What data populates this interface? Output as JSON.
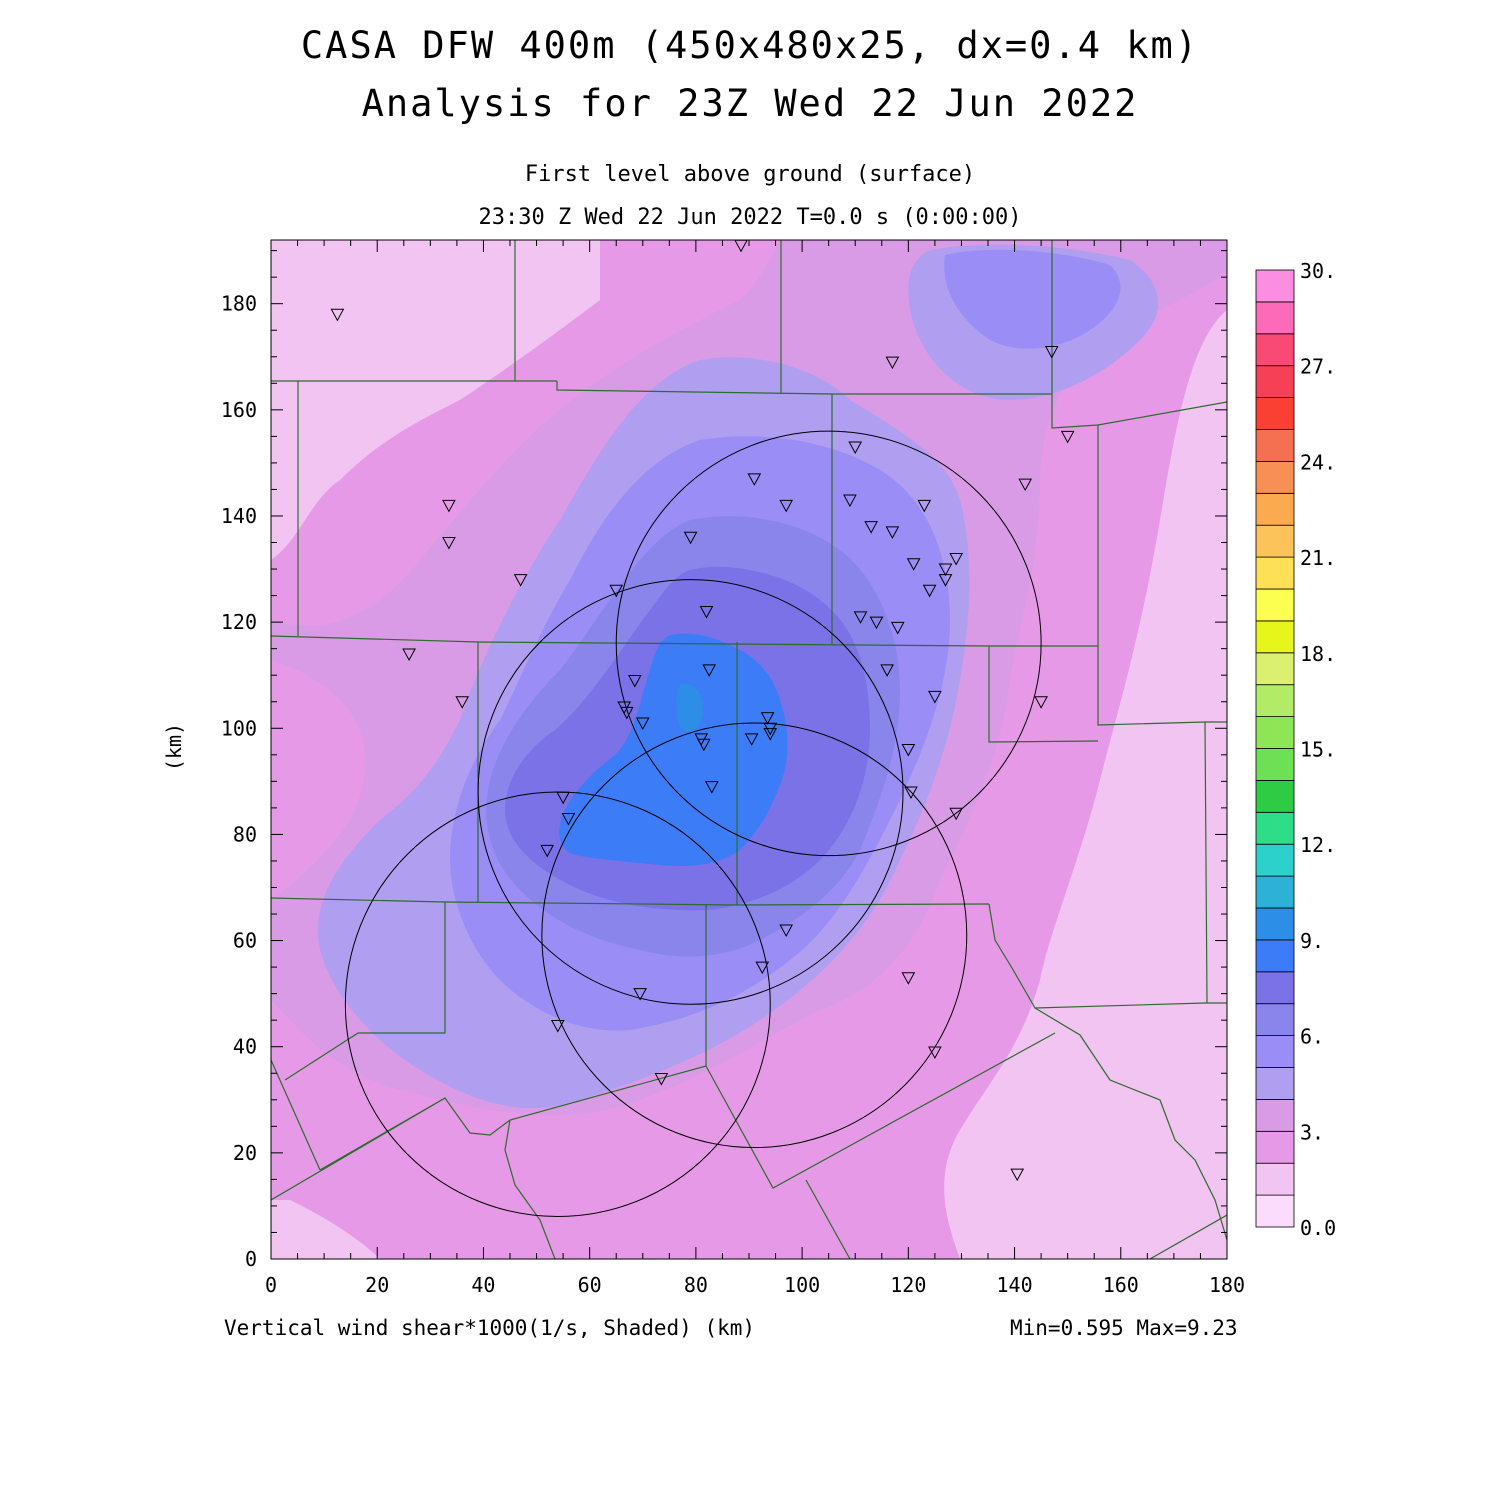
{
  "title": {
    "line1": "CASA DFW 400m (450x480x25, dx=0.4 km)",
    "line2": "Analysis for 23Z Wed 22 Jun 2022"
  },
  "subtitle": {
    "line1": "First level above ground (surface)",
    "line2": "23:30 Z Wed 22 Jun 2022   T=0.0 s (0:00:00)"
  },
  "axes": {
    "x_label": "(km)",
    "y_label": "(km)",
    "x_ticks": [
      "0",
      "20",
      "40",
      "60",
      "80",
      "100",
      "120",
      "140",
      "160",
      "180"
    ],
    "y_ticks": [
      "0",
      "20",
      "40",
      "60",
      "80",
      "100",
      "120",
      "140",
      "160",
      "180"
    ],
    "x_range": [
      0,
      180
    ],
    "y_range": [
      0,
      192
    ]
  },
  "footer": {
    "variable": "Vertical wind shear*1000(1/s, Shaded)",
    "unit": "(km)",
    "stats": "Min=0.595 Max=9.23"
  },
  "colorbar": {
    "labels": [
      "0.0",
      "3.",
      "6.",
      "9.",
      "12.",
      "15.",
      "18.",
      "21.",
      "24.",
      "27.",
      "30."
    ],
    "colors": [
      "#fcdcfc",
      "#f1c4f1",
      "#e699e6",
      "#d99be6",
      "#b09ef0",
      "#9a8df5",
      "#8a85ea",
      "#7a72e6",
      "#3d7cf7",
      "#2c8ee6",
      "#2db1d6",
      "#2dd1cc",
      "#2edd88",
      "#2ecc44",
      "#6ee055",
      "#8ee555",
      "#b2ec66",
      "#dbf06e",
      "#e6f51a",
      "#fcff50",
      "#fde055",
      "#fcc35a",
      "#fbaa50",
      "#f89055",
      "#f47050",
      "#fa4033",
      "#f54055",
      "#f84a74",
      "#fc6ab8",
      "#fb8ee0"
    ]
  },
  "range_rings": [
    {
      "center_km": [
        79,
        88
      ],
      "radius_km": 40
    },
    {
      "center_km": [
        105,
        116
      ],
      "radius_km": 40
    },
    {
      "center_km": [
        91,
        61
      ],
      "radius_km": 40
    },
    {
      "center_km": [
        54,
        48
      ],
      "radius_km": 40
    }
  ],
  "stations_km": [
    [
      12.5,
      178
    ],
    [
      88.5,
      191
    ],
    [
      117,
      169
    ],
    [
      147,
      171
    ],
    [
      150,
      155
    ],
    [
      142,
      146
    ],
    [
      110,
      153
    ],
    [
      91,
      147
    ],
    [
      97,
      142
    ],
    [
      109,
      143
    ],
    [
      123,
      142
    ],
    [
      113,
      138
    ],
    [
      117,
      137
    ],
    [
      79,
      136
    ],
    [
      121,
      131
    ],
    [
      127,
      130
    ],
    [
      129,
      132
    ],
    [
      127,
      128
    ],
    [
      124,
      126
    ],
    [
      65,
      126
    ],
    [
      82,
      122
    ],
    [
      111,
      121
    ],
    [
      114,
      120
    ],
    [
      118,
      119
    ],
    [
      47,
      128
    ],
    [
      33.5,
      142
    ],
    [
      33.5,
      135
    ],
    [
      26,
      114
    ],
    [
      36,
      105
    ],
    [
      82.5,
      111
    ],
    [
      68.5,
      109
    ],
    [
      116,
      111
    ],
    [
      125,
      106
    ],
    [
      145,
      105
    ],
    [
      66.5,
      104
    ],
    [
      67,
      103
    ],
    [
      70,
      101
    ],
    [
      93.5,
      102
    ],
    [
      94,
      100
    ],
    [
      94,
      99
    ],
    [
      90.5,
      98
    ],
    [
      81,
      98
    ],
    [
      81.5,
      97
    ],
    [
      120,
      96
    ],
    [
      83,
      89
    ],
    [
      120.5,
      88
    ],
    [
      129,
      84
    ],
    [
      55,
      87
    ],
    [
      56,
      83
    ],
    [
      52,
      77
    ],
    [
      97,
      62
    ],
    [
      92.5,
      55
    ],
    [
      120,
      53
    ],
    [
      69.5,
      50
    ],
    [
      54,
      44
    ],
    [
      125,
      39
    ],
    [
      73.5,
      34
    ],
    [
      140.5,
      16
    ]
  ]
}
